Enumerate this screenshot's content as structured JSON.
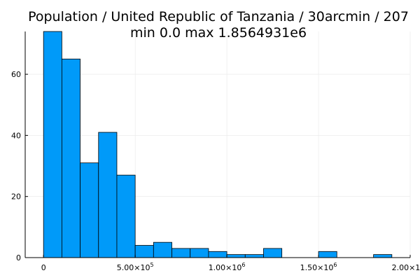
{
  "chart_data": {
    "type": "bar",
    "title": "Population / United Republic of Tanzania / 30arcmin / 207",
    "subtitle": "min 0.0  max 1.8564931e6",
    "xlabel": "",
    "ylabel": "",
    "bin_width": 100000,
    "bins": [
      {
        "start": 0,
        "end": 100000,
        "count": 74
      },
      {
        "start": 100000,
        "end": 200000,
        "count": 65
      },
      {
        "start": 200000,
        "end": 300000,
        "count": 31
      },
      {
        "start": 300000,
        "end": 400000,
        "count": 41
      },
      {
        "start": 400000,
        "end": 500000,
        "count": 27
      },
      {
        "start": 500000,
        "end": 600000,
        "count": 4
      },
      {
        "start": 600000,
        "end": 700000,
        "count": 5
      },
      {
        "start": 700000,
        "end": 800000,
        "count": 3
      },
      {
        "start": 800000,
        "end": 900000,
        "count": 3
      },
      {
        "start": 900000,
        "end": 1000000,
        "count": 2
      },
      {
        "start": 1000000,
        "end": 1100000,
        "count": 1
      },
      {
        "start": 1100000,
        "end": 1200000,
        "count": 1
      },
      {
        "start": 1200000,
        "end": 1300000,
        "count": 3
      },
      {
        "start": 1300000,
        "end": 1400000,
        "count": 0
      },
      {
        "start": 1400000,
        "end": 1500000,
        "count": 0
      },
      {
        "start": 1500000,
        "end": 1600000,
        "count": 2
      },
      {
        "start": 1600000,
        "end": 1700000,
        "count": 0
      },
      {
        "start": 1700000,
        "end": 1800000,
        "count": 0
      },
      {
        "start": 1800000,
        "end": 1900000,
        "count": 1
      }
    ],
    "xlim": [
      -100000,
      2000000
    ],
    "ylim": [
      0,
      74
    ],
    "x_ticks": [
      {
        "value": 0,
        "mantissa": "0",
        "exponent": ""
      },
      {
        "value": 500000,
        "mantissa": "5.00×10",
        "exponent": "5"
      },
      {
        "value": 1000000,
        "mantissa": "1.00×10",
        "exponent": "6"
      },
      {
        "value": 1500000,
        "mantissa": "1.50×10",
        "exponent": "6"
      },
      {
        "value": 2000000,
        "mantissa": "2.00×10",
        "exponent": "6"
      }
    ],
    "y_ticks": [
      {
        "value": 0,
        "label": "0"
      },
      {
        "value": 20,
        "label": "20"
      },
      {
        "value": 40,
        "label": "40"
      },
      {
        "value": 60,
        "label": "60"
      }
    ],
    "grid": true,
    "legend": false,
    "bar_color": "#009af9",
    "bar_edge_color": "#000000",
    "grid_color": "#e8e8e8"
  }
}
